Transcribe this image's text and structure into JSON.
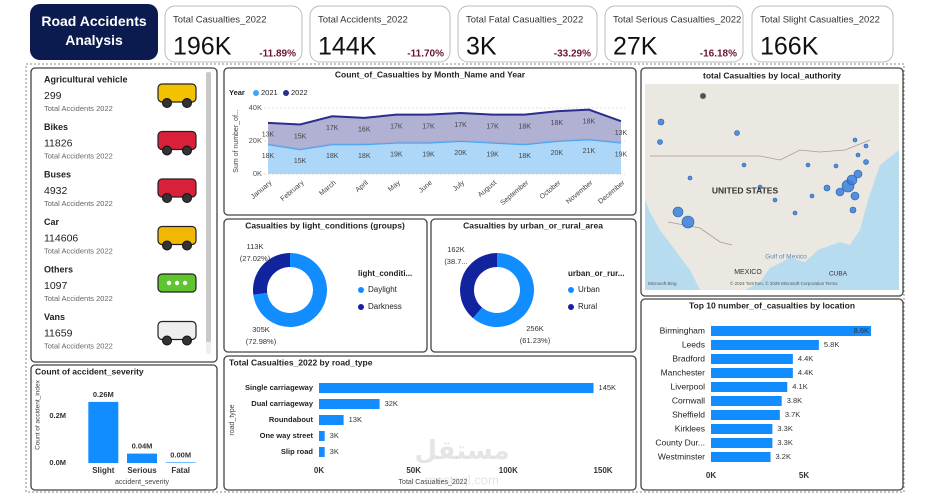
{
  "header": {
    "title": "Road Accidents Analysis"
  },
  "kpis": [
    {
      "label": "Total Casualties_2022",
      "value": "196K",
      "change": "-11.89%"
    },
    {
      "label": "Total Accidents_2022",
      "value": "144K",
      "change": "-11.70%"
    },
    {
      "label": "Total Fatal Casualties_2022",
      "value": "3K",
      "change": "-33.29%"
    },
    {
      "label": "Total Serious Casualties_2022",
      "value": "27K",
      "change": "-16.18%"
    },
    {
      "label": "Total Slight Casualties_2022",
      "value": "166K"
    }
  ],
  "vehicles": [
    {
      "name": "Agricultural vehicle",
      "value": 299,
      "caption": "Total Accidents 2022"
    },
    {
      "name": "Bikes",
      "value": 11826,
      "caption": "Total Accidents 2022"
    },
    {
      "name": "Buses",
      "value": 4932,
      "caption": "Total Accidents 2022"
    },
    {
      "name": "Car",
      "value": 114606,
      "caption": "Total Accidents 2022"
    },
    {
      "name": "Others",
      "value": 1097,
      "caption": "Total Accidents 2022"
    },
    {
      "name": "Vans",
      "value": 11659,
      "caption": "Total Accidents 2022"
    }
  ],
  "map": {
    "title": "total Casualties by local_authority",
    "labels": [
      "UNITED STATES",
      "MEXICO",
      "CUBA",
      "Gulf of Mexico"
    ],
    "credit": "© 2024 TomTom, © 2025 Microsoft Corporation Terms",
    "brand": "Microsoft Bing"
  },
  "watermark": [
    "مستقل",
    "mostaql.com"
  ],
  "chart_data": [
    {
      "type": "area",
      "stacked": true,
      "title": "Count_of_Casualties by Month_Name and Year",
      "legend_title": "Year",
      "y_label": "Sum of number_of...",
      "categories": [
        "January",
        "February",
        "March",
        "April",
        "May",
        "June",
        "July",
        "August",
        "September",
        "October",
        "November",
        "December"
      ],
      "series": [
        {
          "name": "2021",
          "color": "#41a5f5",
          "fill": "#a3d3f7",
          "values": [
            18000,
            15000,
            18000,
            18000,
            19000,
            19000,
            20000,
            19000,
            18000,
            20000,
            21000,
            19000
          ],
          "value_labels": [
            "18K",
            "15K",
            "18K",
            "18K",
            "19K",
            "19K",
            "20K",
            "19K",
            "18K",
            "20K",
            "21K",
            "19K"
          ]
        },
        {
          "name": "2022",
          "color": "#2a2e8c",
          "fill": "#a9a9cf",
          "values": [
            13000,
            15000,
            17000,
            16000,
            17000,
            17000,
            17000,
            17000,
            18000,
            18000,
            18000,
            13000
          ],
          "value_labels": [
            "13K",
            "15K",
            "17K",
            "16K",
            "17K",
            "17K",
            "17K",
            "17K",
            "18K",
            "18K",
            "18K",
            "13K"
          ]
        }
      ],
      "ylim": [
        0,
        40000
      ],
      "yticks": [
        {
          "value": 0,
          "label": "0K"
        },
        {
          "value": 20000,
          "label": "20K"
        },
        {
          "value": 40000,
          "label": "40K"
        }
      ],
      "grid": true
    },
    {
      "type": "donut",
      "title": "Casualties by light_conditions (groups)",
      "legend_title": "light_conditi...",
      "categories": [
        "Daylight",
        "Darkness"
      ],
      "colors": [
        "#118dff",
        "#12239e"
      ],
      "values": [
        305000,
        113000
      ],
      "value_labels": [
        "305K",
        "113K"
      ],
      "percents": [
        72.98,
        27.02
      ],
      "percent_labels": [
        "(72.98%)",
        "(27.02%)"
      ]
    },
    {
      "type": "donut",
      "title": "Casualties by urban_or_rural_area",
      "legend_title": "urban_or_rur...",
      "categories": [
        "Urban",
        "Rural"
      ],
      "colors": [
        "#118dff",
        "#12239e"
      ],
      "values": [
        256000,
        162000
      ],
      "value_labels": [
        "256K",
        "162K"
      ],
      "percents": [
        61.23,
        38.77
      ],
      "percent_labels": [
        "(61.23%)",
        "(38.7..."
      ]
    },
    {
      "type": "hbar",
      "title": "Total Casualties_2022 by road_type",
      "x_label": "Total Casualties_2022",
      "y_label": "road_type",
      "categories": [
        "Single carriageway",
        "Dual carriageway",
        "Roundabout",
        "One way street",
        "Slip road"
      ],
      "values": [
        145000,
        32000,
        13000,
        3000,
        3000
      ],
      "value_labels": [
        "145K",
        "32K",
        "13K",
        "3K",
        "3K"
      ],
      "color": "#118dff",
      "xlim": [
        0,
        150000
      ],
      "xticks": [
        {
          "value": 0,
          "label": "0K"
        },
        {
          "value": 50000,
          "label": "50K"
        },
        {
          "value": 100000,
          "label": "100K"
        },
        {
          "value": 150000,
          "label": "150K"
        }
      ]
    },
    {
      "type": "bar",
      "title": "Count of accident_severity",
      "x_label": "accident_severity",
      "y_label": "Count of accident_index",
      "categories": [
        "Slight",
        "Serious",
        "Fatal"
      ],
      "values": [
        260000,
        40000,
        2500
      ],
      "value_labels": [
        "0.26M",
        "0.04M",
        "0.00M"
      ],
      "color": "#118dff",
      "ylim": [
        0,
        300000
      ],
      "yticks": [
        {
          "value": 0,
          "label": "0.0M"
        },
        {
          "value": 200000,
          "label": "0.2M"
        }
      ]
    },
    {
      "type": "hbar",
      "title": "Top 10 number_of_casualties by location",
      "categories": [
        "Birmingham",
        "Leeds",
        "Bradford",
        "Manchester",
        "Liverpool",
        "Cornwall",
        "Sheffield",
        "Kirklees",
        "County Dur...",
        "Westminster"
      ],
      "values": [
        8600,
        5800,
        4400,
        4400,
        4100,
        3800,
        3700,
        3300,
        3300,
        3200
      ],
      "value_labels": [
        "8.6K",
        "5.8K",
        "4.4K",
        "4.4K",
        "4.1K",
        "3.8K",
        "3.7K",
        "3.3K",
        "3.3K",
        "3.2K"
      ],
      "color": "#118dff",
      "xlim": [
        0,
        8600
      ],
      "xticks": [
        {
          "value": 0,
          "label": "0K"
        },
        {
          "value": 5000,
          "label": "5K"
        }
      ]
    }
  ]
}
